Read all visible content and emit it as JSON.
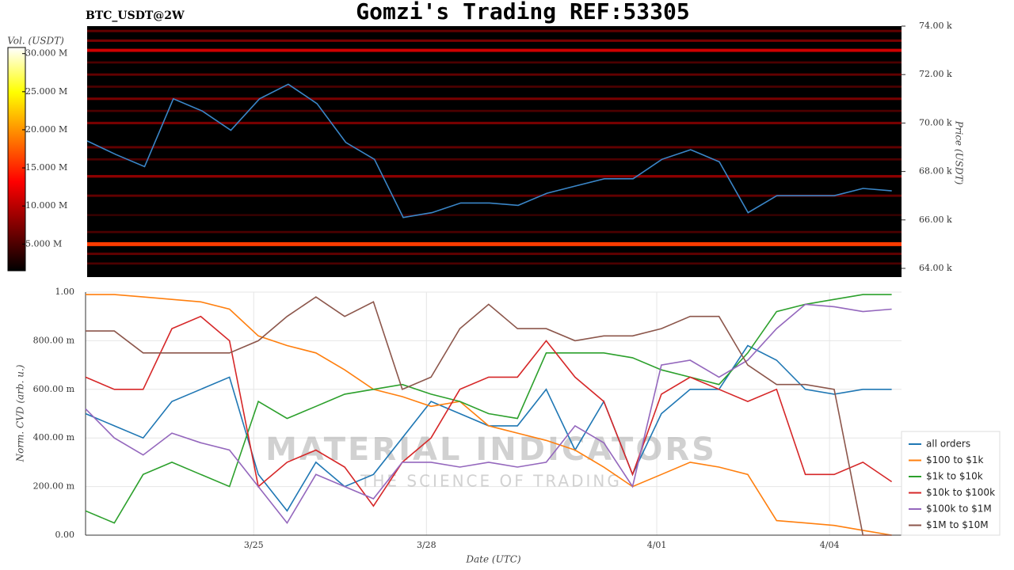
{
  "chart_data": [
    {
      "type": "heatmap",
      "title": "Gomzi's Trading REF:53305",
      "subtitle": "BTC_USDT@2W",
      "y_label": "Price (USDT)",
      "colorbar_label": "Vol. (USDT)",
      "xlim": [
        0,
        14.17
      ],
      "ylim": [
        63640,
        74000
      ],
      "yticks": [
        {
          "value": 64000,
          "label": "64.00 k"
        },
        {
          "value": 66000,
          "label": "66.00 k"
        },
        {
          "value": 68000,
          "label": "68.00 k"
        },
        {
          "value": 70000,
          "label": "70.00 k"
        },
        {
          "value": 72000,
          "label": "72.00 k"
        },
        {
          "value": 74000,
          "label": "74.00 k"
        }
      ],
      "clim": [
        1500000,
        30800000
      ],
      "cticks": [
        {
          "value": 5000000,
          "label": "5.000 M"
        },
        {
          "value": 10000000,
          "label": "10.000 M"
        },
        {
          "value": 15000000,
          "label": "15.000 M"
        },
        {
          "value": 20000000,
          "label": "20.000 M"
        },
        {
          "value": 25000000,
          "label": "25.000 M"
        },
        {
          "value": 30000000,
          "label": "30.000 M"
        }
      ],
      "levels": [
        64200,
        64600,
        65000,
        65500,
        66200,
        67000,
        67800,
        68500,
        69000,
        70000,
        70500,
        71000,
        71500,
        72000,
        72500,
        73000,
        73400,
        73800
      ],
      "level_volumes": [
        5000000,
        6000000,
        16000000,
        5000000,
        4000000,
        6000000,
        8000000,
        5000000,
        6000000,
        7000000,
        5000000,
        7000000,
        5000000,
        6000000,
        5000000,
        11000000,
        7000000,
        6000000
      ],
      "x": [
        0,
        0.5,
        1,
        1.5,
        2,
        2.5,
        3,
        3.5,
        4,
        4.5,
        5,
        5.5,
        6,
        6.5,
        7,
        7.5,
        8,
        8.5,
        9,
        9.5,
        10,
        10.5,
        11,
        11.5,
        12,
        12.5,
        13,
        13.5,
        14
      ],
      "series": [
        {
          "color": "#3a86c8",
          "values": [
            69260,
            68700,
            68200,
            71000,
            70500,
            69700,
            71000,
            71600,
            70800,
            69200,
            68500,
            66100,
            66300,
            66700,
            66700,
            66600,
            67100,
            67400,
            67700,
            67700,
            68500,
            68900,
            68400,
            66300,
            67000,
            67000,
            67000,
            67300,
            67200
          ]
        }
      ]
    },
    {
      "type": "line",
      "x_label": "Date (UTC)",
      "y_label": "Norm. CVD (arb. u.)",
      "watermark": [
        "MATERIAL INDICATORS",
        "THE SCIENCE OF TRADING"
      ],
      "xlim": [
        0,
        14.17
      ],
      "xticks": [
        {
          "value": 2.92,
          "label": "3/25"
        },
        {
          "value": 5.92,
          "label": "3/28"
        },
        {
          "value": 9.92,
          "label": "4/01"
        },
        {
          "value": 12.92,
          "label": "4/04"
        }
      ],
      "ylim": [
        0,
        1
      ],
      "yticks": [
        {
          "value": 0,
          "label": "0.00"
        },
        {
          "value": 0.2,
          "label": "200.00 m"
        },
        {
          "value": 0.4,
          "label": "400.00 m"
        },
        {
          "value": 0.6,
          "label": "600.00 m"
        },
        {
          "value": 0.8,
          "label": "800.00 m"
        },
        {
          "value": 1,
          "label": "1.00"
        }
      ],
      "grid": true,
      "legend": "lower right",
      "x": [
        0,
        0.5,
        1,
        1.5,
        2,
        2.5,
        3,
        3.5,
        4,
        4.5,
        5,
        5.5,
        6,
        6.5,
        7,
        7.5,
        8,
        8.5,
        9,
        9.5,
        10,
        10.5,
        11,
        11.5,
        12,
        12.5,
        13,
        13.5,
        14
      ],
      "series": [
        {
          "name": "all orders",
          "color": "#1f77b4",
          "values": [
            0.5,
            0.45,
            0.4,
            0.55,
            0.6,
            0.65,
            0.25,
            0.1,
            0.3,
            0.2,
            0.25,
            0.4,
            0.55,
            0.5,
            0.45,
            0.45,
            0.6,
            0.35,
            0.55,
            0.25,
            0.5,
            0.6,
            0.6,
            0.78,
            0.72,
            0.6,
            0.58,
            0.6,
            0.6
          ]
        },
        {
          "name": "$100 to $1k",
          "color": "#ff7f0e",
          "values": [
            0.99,
            0.99,
            0.98,
            0.97,
            0.96,
            0.93,
            0.82,
            0.78,
            0.75,
            0.68,
            0.6,
            0.57,
            0.53,
            0.55,
            0.45,
            0.42,
            0.39,
            0.35,
            0.28,
            0.2,
            0.25,
            0.3,
            0.28,
            0.25,
            0.06,
            0.05,
            0.04,
            0.02,
            0
          ]
        },
        {
          "name": "$1k to $10k",
          "color": "#2ca02c",
          "values": [
            0.1,
            0.05,
            0.25,
            0.3,
            0.25,
            0.2,
            0.55,
            0.48,
            0.53,
            0.58,
            0.6,
            0.62,
            0.58,
            0.55,
            0.5,
            0.48,
            0.75,
            0.75,
            0.75,
            0.73,
            0.68,
            0.65,
            0.62,
            0.75,
            0.92,
            0.95,
            0.97,
            0.99,
            0.99
          ]
        },
        {
          "name": "$10k to $100k",
          "color": "#d62728",
          "values": [
            0.65,
            0.6,
            0.6,
            0.85,
            0.9,
            0.8,
            0.2,
            0.3,
            0.35,
            0.28,
            0.12,
            0.3,
            0.4,
            0.6,
            0.65,
            0.65,
            0.8,
            0.65,
            0.55,
            0.25,
            0.58,
            0.65,
            0.6,
            0.55,
            0.6,
            0.25,
            0.25,
            0.3,
            0.22
          ]
        },
        {
          "name": "$100k to $1M",
          "color": "#9467bd",
          "values": [
            0.52,
            0.4,
            0.33,
            0.42,
            0.38,
            0.35,
            0.2,
            0.05,
            0.25,
            0.2,
            0.15,
            0.3,
            0.3,
            0.28,
            0.3,
            0.28,
            0.3,
            0.45,
            0.38,
            0.2,
            0.7,
            0.72,
            0.65,
            0.72,
            0.85,
            0.95,
            0.94,
            0.92,
            0.93
          ]
        },
        {
          "name": "$1M to $10M",
          "color": "#8c564b",
          "values": [
            0.84,
            0.84,
            0.75,
            0.75,
            0.75,
            0.75,
            0.8,
            0.9,
            0.98,
            0.9,
            0.96,
            0.6,
            0.65,
            0.85,
            0.95,
            0.85,
            0.85,
            0.8,
            0.82,
            0.82,
            0.85,
            0.9,
            0.9,
            0.7,
            0.62,
            0.62,
            0.6,
            0,
            0
          ]
        }
      ]
    }
  ]
}
